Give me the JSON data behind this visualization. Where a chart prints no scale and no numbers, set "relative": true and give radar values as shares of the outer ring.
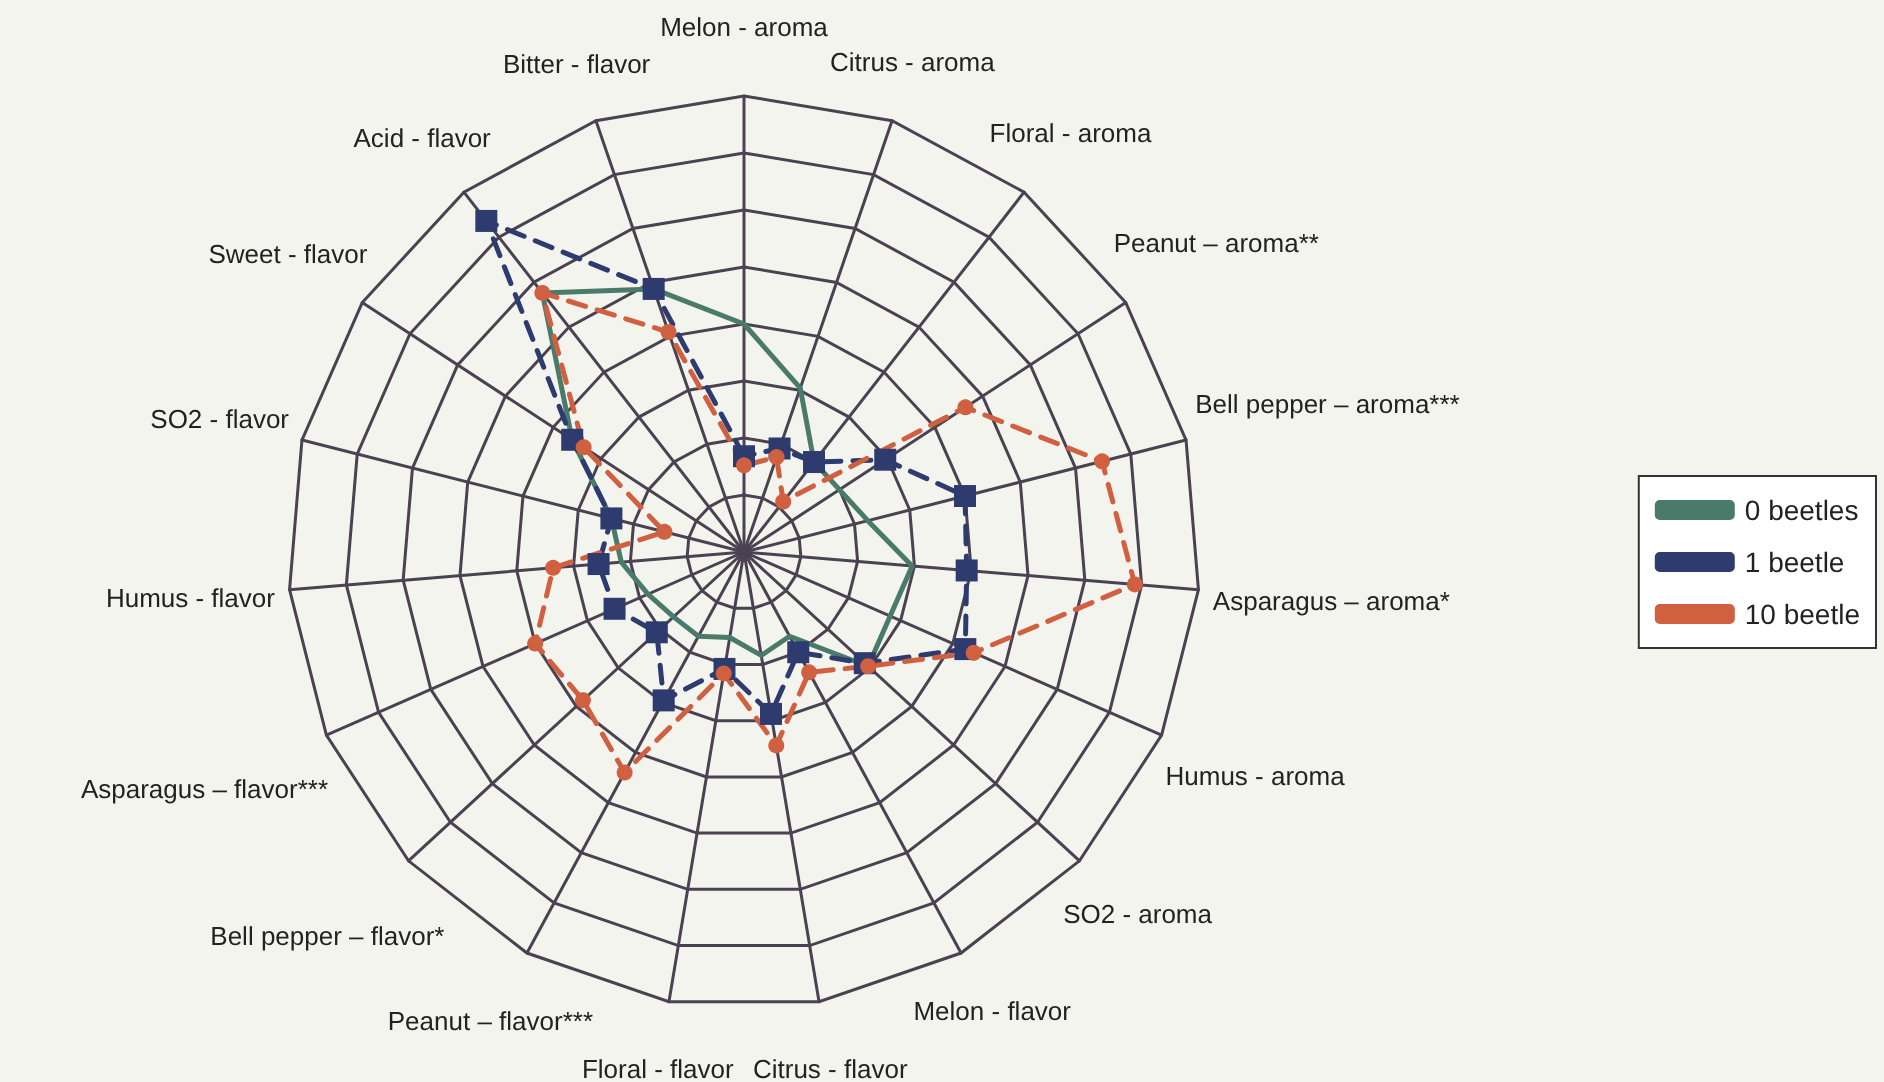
{
  "chart_data": {
    "type": "radar",
    "relative": true,
    "legend": "right",
    "grid": true,
    "categories": [
      "Melon - aroma",
      "Citrus - aroma",
      "Floral - aroma",
      "Peanut – aroma**",
      "Bell pepper – aroma***",
      "Asparagus – aroma*",
      "Humus - aroma",
      "SO2 - aroma",
      "Melon - flavor",
      "Citrus - flavor",
      "Floral - flavor",
      "Peanut – flavor***",
      "Bell pepper – flavor*",
      "Asparagus – flavor***",
      "Humus - flavor",
      "SO2 - flavor",
      "Sweet - flavor",
      "Acid - flavor",
      "Bitter - flavor"
    ],
    "series": [
      {
        "name": "0 beetles",
        "color": "#4a7a6a",
        "line_style": "solid",
        "marker": "none",
        "values": [
          0.5,
          0.38,
          0.25,
          0.25,
          0.28,
          0.37,
          0.35,
          0.37,
          0.21,
          0.23,
          0.19,
          0.21,
          0.21,
          0.23,
          0.27,
          0.3,
          0.45,
          0.72,
          0.61
        ]
      },
      {
        "name": "1 beetle",
        "color": "#2e3b6e",
        "line_style": "dashed",
        "marker": "square",
        "values": [
          0.21,
          0.24,
          0.25,
          0.37,
          0.5,
          0.49,
          0.53,
          0.36,
          0.25,
          0.36,
          0.26,
          0.37,
          0.26,
          0.31,
          0.32,
          0.3,
          0.45,
          0.92,
          0.61
        ]
      },
      {
        "name": "10 beetle",
        "color": "#d0603f",
        "line_style": "dashed",
        "marker": "circle",
        "values": [
          0.19,
          0.22,
          0.14,
          0.58,
          0.81,
          0.86,
          0.55,
          0.37,
          0.3,
          0.43,
          0.27,
          0.55,
          0.48,
          0.5,
          0.42,
          0.18,
          0.42,
          0.72,
          0.51
        ]
      }
    ]
  }
}
